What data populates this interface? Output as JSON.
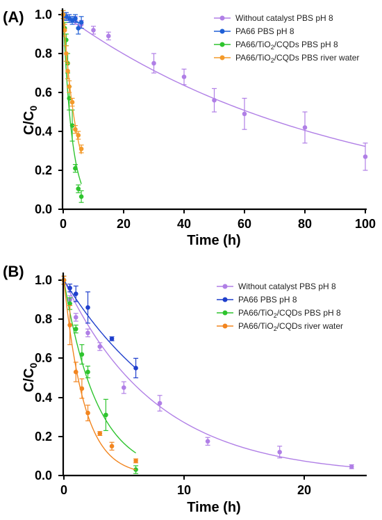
{
  "chart_data": [
    {
      "panel_label": "(A)",
      "type": "scatter",
      "xlabel": "Time (h)",
      "ylabel": {
        "main": "C/C",
        "sub": "0"
      },
      "xlim": [
        0,
        100
      ],
      "ylim": [
        0,
        1.05
      ],
      "xticks": [
        "0",
        "20",
        "40",
        "60",
        "80",
        "100"
      ],
      "yticks": [
        "0.0",
        "0.2",
        "0.4",
        "0.6",
        "0.8",
        "1.0"
      ],
      "legend_position": "top-right",
      "series": [
        {
          "name": {
            "pre": "Without catalyst PBS pH 8",
            "sub": "",
            "post": ""
          },
          "color": "#b07fe6",
          "x": [
            0,
            1,
            2,
            4,
            6,
            10,
            15,
            30,
            40,
            50,
            60,
            80,
            100
          ],
          "y": [
            1.0,
            0.99,
            0.98,
            0.97,
            0.95,
            0.92,
            0.89,
            0.75,
            0.68,
            0.56,
            0.49,
            0.42,
            0.27
          ],
          "err": [
            0.02,
            0.02,
            0.02,
            0.02,
            0.02,
            0.02,
            0.02,
            0.05,
            0.04,
            0.06,
            0.08,
            0.08,
            0.07
          ],
          "fit_k": 0.0113
        },
        {
          "name": {
            "pre": "PA66 PBS pH 8",
            "sub": "",
            "post": ""
          },
          "color": "#1f5fd6",
          "x": [
            0,
            0.5,
            1,
            2,
            3,
            4,
            5,
            6
          ],
          "y": [
            1.0,
            0.99,
            0.99,
            0.98,
            0.97,
            0.98,
            0.93,
            0.96
          ],
          "err": [
            0.02,
            0.02,
            0.02,
            0.02,
            0.02,
            0.02,
            0.03,
            0.03
          ],
          "fit_k": 0.008
        },
        {
          "name": {
            "pre": "PA66/TiO",
            "sub": "2",
            "post": "/CQDs PBS pH 8"
          },
          "color": "#2ec42e",
          "x": [
            0,
            0.5,
            1,
            1.5,
            2,
            3,
            4,
            5,
            6
          ],
          "y": [
            1.0,
            0.93,
            0.87,
            0.75,
            0.57,
            0.43,
            0.21,
            0.105,
            0.065
          ],
          "err": [
            0.02,
            0.03,
            0.03,
            0.05,
            0.06,
            0.08,
            0.02,
            0.02,
            0.03
          ],
          "fit_k": 0.34
        },
        {
          "name": {
            "pre": "PA66/TiO",
            "sub": "2",
            "post": "/CQDs PBS river water"
          },
          "color": "#f39a2b",
          "x": [
            0,
            0.5,
            1,
            1.5,
            2,
            3,
            4,
            5,
            6
          ],
          "y": [
            1.0,
            0.92,
            0.8,
            0.71,
            0.63,
            0.55,
            0.41,
            0.38,
            0.31
          ],
          "err": [
            0.02,
            0.03,
            0.04,
            0.04,
            0.03,
            0.02,
            0.02,
            0.02,
            0.02
          ],
          "fit_k": 0.21
        }
      ]
    },
    {
      "panel_label": "(B)",
      "type": "scatter",
      "xlabel": "Time (h)",
      "ylabel": {
        "main": "C/C",
        "sub": "0"
      },
      "xlim": [
        0,
        25
      ],
      "ylim": [
        0,
        1.05
      ],
      "xticks": [
        "0",
        "10",
        "20"
      ],
      "yticks": [
        "0.0",
        "0.2",
        "0.4",
        "0.6",
        "0.8",
        "1.0"
      ],
      "legend_position": "top-right",
      "series": [
        {
          "name": {
            "pre": "Without catalyst PBS pH 8",
            "sub": "",
            "post": ""
          },
          "color": "#b07fe6",
          "x": [
            0,
            0.5,
            1,
            2,
            3,
            5,
            8,
            12,
            18,
            24
          ],
          "y": [
            1.0,
            0.9,
            0.81,
            0.73,
            0.66,
            0.45,
            0.37,
            0.175,
            0.12,
            0.045
          ],
          "err": [
            0.02,
            0.02,
            0.02,
            0.02,
            0.02,
            0.03,
            0.04,
            0.02,
            0.03,
            0.01
          ],
          "fit_k": 0.13
        },
        {
          "name": {
            "pre": "PA66 PBS pH 8",
            "sub": "",
            "post": ""
          },
          "color": "#1f3fcc",
          "x": [
            0,
            0.5,
            1,
            2,
            4,
            6
          ],
          "y": [
            1.0,
            0.96,
            0.93,
            0.86,
            0.7,
            0.55
          ],
          "err": [
            0.02,
            0.02,
            0.04,
            0.08,
            0.01,
            0.05
          ],
          "fit_k": 0.1
        },
        {
          "name": {
            "pre": "PA66/TiO",
            "sub": "2",
            "post": "/CQDs PBS pH 8"
          },
          "color": "#2ec42e",
          "x": [
            0,
            0.5,
            1,
            1.5,
            2,
            3.5,
            6
          ],
          "y": [
            1.0,
            0.88,
            0.75,
            0.62,
            0.53,
            0.31,
            0.03
          ],
          "err": [
            0.02,
            0.03,
            0.02,
            0.05,
            0.03,
            0.08,
            0.02
          ],
          "fit_k": 0.36
        },
        {
          "name": {
            "pre": "PA66/TiO",
            "sub": "2",
            "post": "/CQDs river water"
          },
          "color": "#f2851f",
          "x": [
            0,
            0.5,
            1,
            1.5,
            2,
            3,
            4,
            6
          ],
          "y": [
            1.0,
            0.77,
            0.53,
            0.445,
            0.32,
            0.215,
            0.15,
            0.075
          ],
          "err": [
            0.02,
            0.1,
            0.05,
            0.05,
            0.04,
            0.01,
            0.02,
            0.01
          ],
          "fit_k": 0.59
        }
      ]
    }
  ]
}
